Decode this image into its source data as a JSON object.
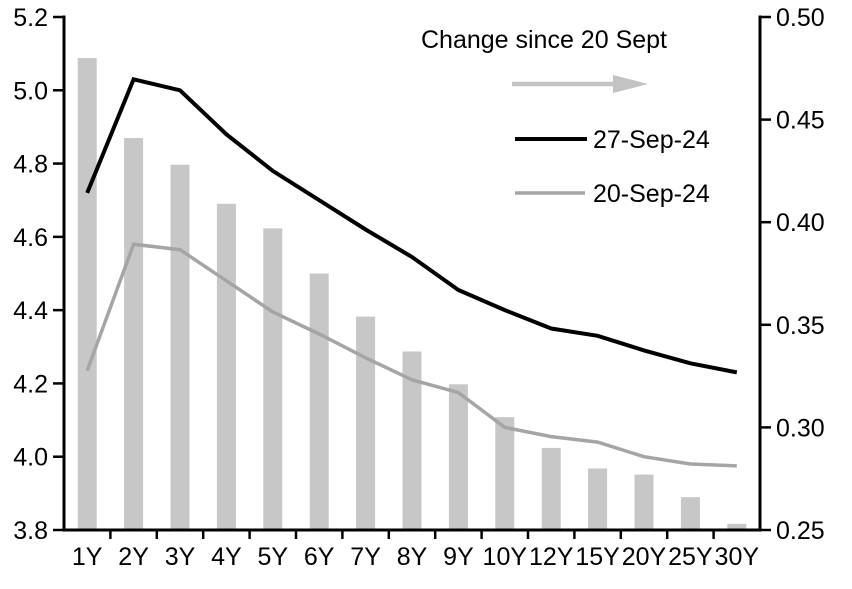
{
  "chart_data": {
    "type": "composite",
    "title": "",
    "categories": [
      "1Y",
      "2Y",
      "3Y",
      "4Y",
      "5Y",
      "6Y",
      "7Y",
      "8Y",
      "9Y",
      "10Y",
      "12Y",
      "15Y",
      "20Y",
      "25Y",
      "30Y"
    ],
    "series": [
      {
        "name": "Change since 20 Sept",
        "type": "bar",
        "axis": "right",
        "color": "#c7c7c7",
        "values": [
          0.48,
          0.441,
          0.428,
          0.409,
          0.397,
          0.375,
          0.354,
          0.337,
          0.321,
          0.305,
          0.29,
          0.28,
          0.277,
          0.266,
          0.253
        ]
      },
      {
        "name": "27-Sep-24",
        "type": "line",
        "axis": "left",
        "color": "#000000",
        "values": [
          4.72,
          5.03,
          5.0,
          4.88,
          4.78,
          4.7,
          4.62,
          4.545,
          4.455,
          4.4,
          4.35,
          4.33,
          4.29,
          4.255,
          4.23
        ]
      },
      {
        "name": "20-Sep-24",
        "type": "line",
        "axis": "left",
        "color": "#a5a5a5",
        "values": [
          4.235,
          4.58,
          4.565,
          4.48,
          4.395,
          4.335,
          4.27,
          4.21,
          4.175,
          4.08,
          4.055,
          4.04,
          4.0,
          3.98,
          3.975
        ]
      }
    ],
    "left_axis": {
      "min": 3.8,
      "max": 5.2,
      "tick_labels": [
        "5.2",
        "5.0",
        "4.8",
        "4.6",
        "4.4",
        "4.2",
        "4.0",
        "3.8"
      ]
    },
    "right_axis": {
      "min": 0.25,
      "max": 0.5,
      "tick_labels": [
        "0.50",
        "0.45",
        "0.40",
        "0.35",
        "0.30",
        "0.25"
      ]
    },
    "legend": {
      "change_label": "Change since 20 Sept",
      "arrow_icon": "right-arrow",
      "line_labels": [
        "27-Sep-24",
        "20-Sep-24"
      ]
    },
    "grid": false,
    "legend_position": "inside-top-right"
  },
  "colors": {
    "bar": "#c7c7c7",
    "line_27sep": "#000000",
    "line_20sep": "#a5a5a5",
    "arrow": "#c3c3c3",
    "axis": "#000000",
    "text": "#000000",
    "background": "#ffffff"
  }
}
